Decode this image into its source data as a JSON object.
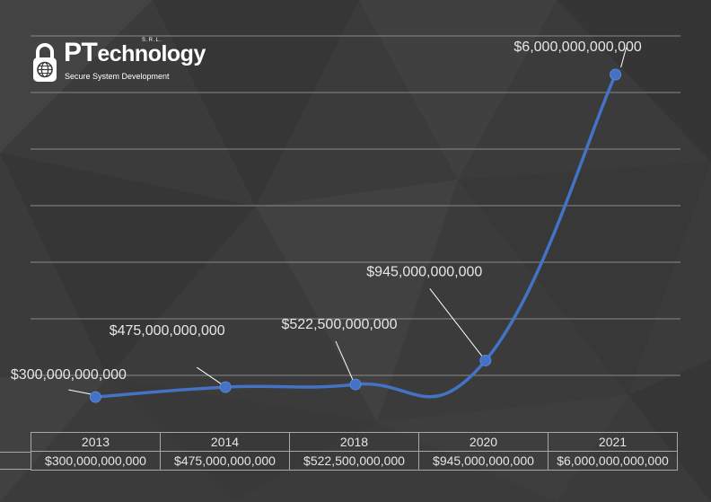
{
  "brand": {
    "name_initial": "PT",
    "name_rest": "echnology",
    "suffix": "S.R.L.",
    "tagline": "Secure System Development"
  },
  "colors": {
    "background": "#3b3b3b",
    "line": "#4472c4",
    "grid": "#8a8a8a",
    "text": "#e6e6e6"
  },
  "chart_data": {
    "type": "line",
    "title": "",
    "xlabel": "",
    "ylabel": "",
    "categories": [
      "2013",
      "2014",
      "2018",
      "2020",
      "2021"
    ],
    "values": [
      300000000000,
      475000000000,
      522500000000,
      945000000000,
      6000000000000
    ],
    "labels": [
      "$300,000,000,000",
      "$475,000,000,000",
      "$522,500,000,000",
      "$945,000,000,000",
      "$6,000,000,000,000"
    ],
    "ylim": [
      0,
      7000000000000
    ],
    "grid": true,
    "legend": "none"
  },
  "table": {
    "years": [
      "2013",
      "2014",
      "2018",
      "2020",
      "2021"
    ],
    "values": [
      "$300,000,000,000",
      "$475,000,000,000",
      "$522,500,000,000",
      "$945,000,000,000",
      "$6,000,000,000,000"
    ]
  }
}
